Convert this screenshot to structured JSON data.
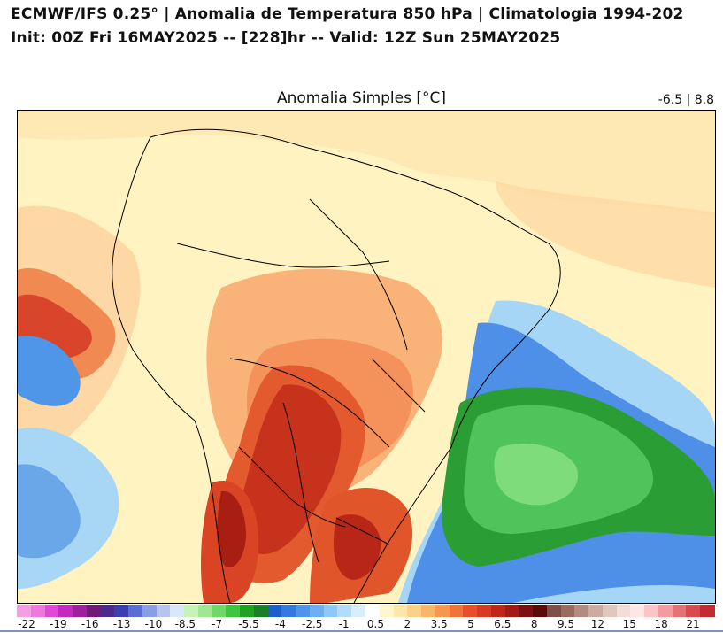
{
  "header": {
    "line1": "ECMWF/IFS 0.25° | Anomalia de Temperatura 850 hPa | Climatologia 1994-202",
    "line2": "Init: 00Z Fri 16MAY2025 -- [228]hr -- Valid: 12Z Sun 25MAY2025"
  },
  "map": {
    "title": "Anomalia Simples [°C]",
    "range": "-6.5 | 8.8",
    "field": "Temperature anomaly 850 hPa",
    "colors": {
      "near_zero": "#fff3c2",
      "warm_light": "#fdd9a0",
      "warm_orange": "#f7a56b",
      "warm_red": "#e8542a",
      "warm_dark": "#a81e12",
      "cold_light": "#9fd3f5",
      "cold_blue": "#3f87e6",
      "cold_green": "#4fc45a",
      "cold_green_dark": "#2a9e35",
      "border": "#000000"
    }
  },
  "colorbar": {
    "labels": [
      "-22",
      "-19",
      "-16",
      "-13",
      "-10",
      "-8.5",
      "-7",
      "-5.5",
      "-4",
      "-2.5",
      "-1",
      "0.5",
      "2",
      "3.5",
      "5",
      "6.5",
      "8",
      "9.5",
      "12",
      "15",
      "18",
      "21"
    ],
    "colors": [
      "#f59ee6",
      "#ee78de",
      "#e048d6",
      "#c52ac0",
      "#a01f9e",
      "#731a77",
      "#4a2a8c",
      "#3b3fb0",
      "#5a6fd0",
      "#8a9ee3",
      "#b7c4f0",
      "#d9e6fb",
      "#c8f3b8",
      "#9ee793",
      "#6fd968",
      "#3fc640",
      "#1fa325",
      "#1c7d2a",
      "#1e5fc9",
      "#3478e0",
      "#4e94eb",
      "#6eaef2",
      "#90c8f5",
      "#b4dcf8",
      "#d8eef8",
      "#ffffff",
      "#fff6cc",
      "#fde7a6",
      "#fbd187",
      "#f9b66b",
      "#f6974f",
      "#f0743a",
      "#e5502a",
      "#d63a22",
      "#bf261a",
      "#a11a14",
      "#7d1010",
      "#5c0b0b",
      "#7d5048",
      "#9a6c60",
      "#b48b80",
      "#cdaba0",
      "#e2c7bd",
      "#f2ded6",
      "#fde6e4",
      "#fbc4c6",
      "#f39ca0",
      "#e67276",
      "#d84a4e",
      "#c22b30"
    ]
  }
}
